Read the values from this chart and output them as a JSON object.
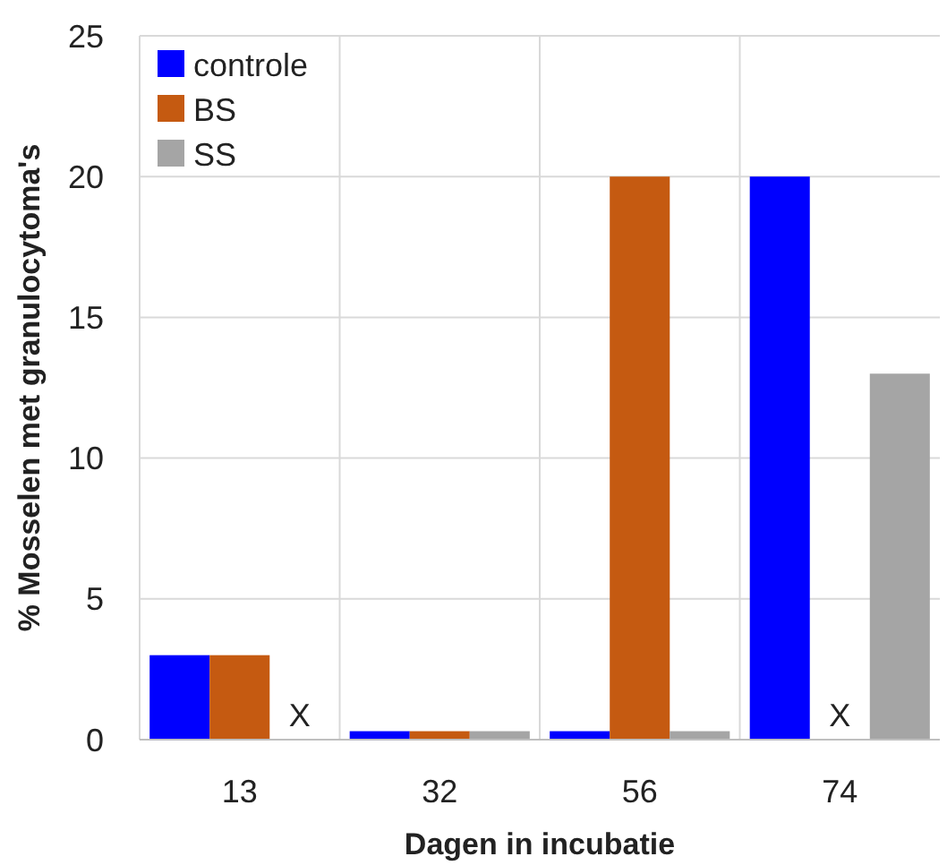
{
  "chart_data": {
    "type": "bar",
    "xlabel": "Dagen in incubatie",
    "ylabel": "% Mosselen met granulocytoma's",
    "categories": [
      "13",
      "32",
      "56",
      "74"
    ],
    "series": [
      {
        "name": "controle",
        "color": "#0000ff",
        "values": [
          3,
          0.3,
          0.3,
          20
        ]
      },
      {
        "name": "BS",
        "color": "#c55a11",
        "values": [
          3,
          0.3,
          20,
          null
        ]
      },
      {
        "name": "SS",
        "color": "#a5a5a5",
        "values": [
          null,
          0.3,
          0.3,
          13
        ]
      }
    ],
    "ylim": [
      0,
      25
    ],
    "yticks": [
      0,
      5,
      10,
      15,
      20,
      25
    ],
    "grid": true,
    "legend": "top left",
    "annotations": [
      "X",
      "X"
    ]
  }
}
